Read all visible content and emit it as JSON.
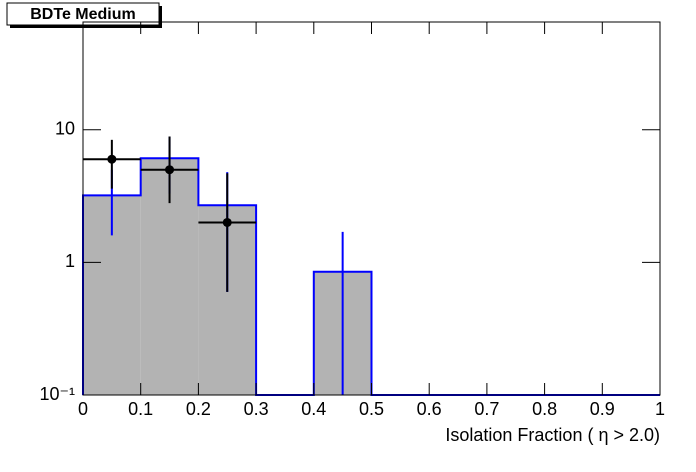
{
  "chart_data": {
    "type": "histogram",
    "title": "BDTe Medium",
    "x_label": "Isolation Fraction ( η > 2.0)",
    "log_y": true,
    "bins": [
      0,
      0.1,
      0.2,
      0.3,
      0.4,
      0.5,
      0.6,
      0.7,
      0.8,
      0.9,
      1
    ],
    "histogram": {
      "values": [
        3.2,
        6.1,
        2.7,
        0,
        0.85,
        0,
        0,
        0,
        0,
        0
      ],
      "color": "#0000ff",
      "fill": "#b3b3b3",
      "error_low": [
        1.6,
        3.3,
        0.6,
        null,
        0,
        null,
        null,
        null,
        null,
        null
      ],
      "error_high": [
        5.0,
        8.9,
        4.8,
        null,
        1.7,
        null,
        null,
        null,
        null,
        null
      ]
    },
    "points": {
      "x": [
        0.05,
        0.15,
        0.25
      ],
      "x_error": [
        0.05,
        0.05,
        0.05
      ],
      "values": [
        6,
        5,
        2
      ],
      "error_low": [
        3.6,
        2.8,
        0.6
      ],
      "error_high": [
        8.4,
        8.9,
        4.7
      ],
      "color": "#000000"
    },
    "xlim": [
      0,
      1
    ],
    "xticks": [
      0,
      0.1,
      0.2,
      0.3,
      0.4,
      0.5,
      0.6,
      0.7,
      0.8,
      0.9,
      1
    ],
    "ylim": [
      0.1,
      65
    ],
    "yticks": [
      {
        "value": 0.1,
        "label": "10⁻¹"
      },
      1,
      10
    ]
  }
}
